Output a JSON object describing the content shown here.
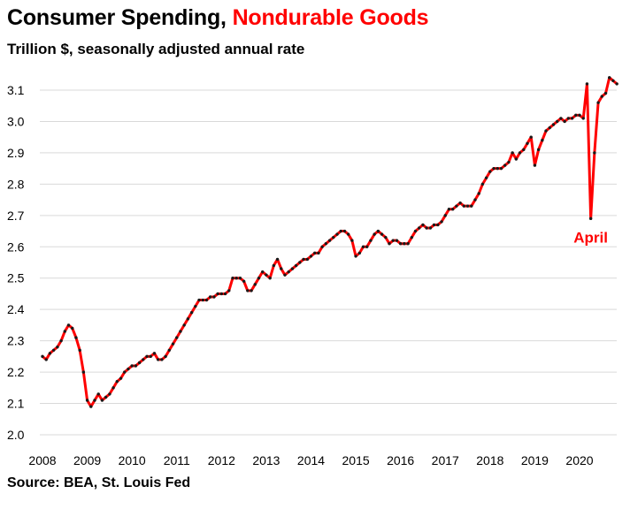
{
  "title_part1": "Consumer Spending,",
  "title_part2": "Nondurable Goods",
  "subtitle": "Trillion $, seasonally adjusted annual rate",
  "source": "Source: BEA, St. Louis Fed",
  "colors": {
    "line": "#ff0000",
    "markers": "#1a1a1a",
    "grid": "#d9d9d9",
    "annotation": "#ff0000"
  },
  "chart_data": {
    "type": "line",
    "title": "Consumer Spending, Nondurable Goods",
    "subtitle": "Trillion $, seasonally adjusted annual rate",
    "xlabel": "",
    "ylabel": "Trillion $",
    "ylim": [
      2.0,
      3.15
    ],
    "yticks": [
      2.0,
      2.1,
      2.2,
      2.3,
      2.4,
      2.5,
      2.6,
      2.7,
      2.8,
      2.9,
      3.0,
      3.1
    ],
    "ytick_labels": [
      "2.0",
      "2.1",
      "2.2",
      "2.3",
      "2.4",
      "2.5",
      "2.6",
      "2.7",
      "2.8",
      "2.9",
      "3.0",
      "3.1"
    ],
    "xlim": [
      2008.0,
      2020.9
    ],
    "xticks": [
      2008,
      2009,
      2010,
      2011,
      2012,
      2013,
      2014,
      2015,
      2016,
      2017,
      2018,
      2019,
      2020
    ],
    "xtick_labels": [
      "2008",
      "2009",
      "2010",
      "2011",
      "2012",
      "2013",
      "2014",
      "2015",
      "2016",
      "2017",
      "2018",
      "2019",
      "2020"
    ],
    "grid": true,
    "annotations": [
      {
        "text": "April",
        "x": 2020.25,
        "y": 2.69
      }
    ],
    "series": [
      {
        "name": "Nondurable Goods",
        "frequency": "monthly",
        "start": 2008.0,
        "values": [
          2.25,
          2.24,
          2.26,
          2.27,
          2.28,
          2.3,
          2.33,
          2.35,
          2.34,
          2.31,
          2.27,
          2.2,
          2.11,
          2.09,
          2.11,
          2.13,
          2.11,
          2.12,
          2.13,
          2.15,
          2.17,
          2.18,
          2.2,
          2.21,
          2.22,
          2.22,
          2.23,
          2.24,
          2.25,
          2.25,
          2.26,
          2.24,
          2.24,
          2.25,
          2.27,
          2.29,
          2.31,
          2.33,
          2.35,
          2.37,
          2.39,
          2.41,
          2.43,
          2.43,
          2.43,
          2.44,
          2.44,
          2.45,
          2.45,
          2.45,
          2.46,
          2.5,
          2.5,
          2.5,
          2.49,
          2.46,
          2.46,
          2.48,
          2.5,
          2.52,
          2.51,
          2.5,
          2.54,
          2.56,
          2.53,
          2.51,
          2.52,
          2.53,
          2.54,
          2.55,
          2.56,
          2.56,
          2.57,
          2.58,
          2.58,
          2.6,
          2.61,
          2.62,
          2.63,
          2.64,
          2.65,
          2.65,
          2.64,
          2.62,
          2.57,
          2.58,
          2.6,
          2.6,
          2.62,
          2.64,
          2.65,
          2.64,
          2.63,
          2.61,
          2.62,
          2.62,
          2.61,
          2.61,
          2.61,
          2.63,
          2.65,
          2.66,
          2.67,
          2.66,
          2.66,
          2.67,
          2.67,
          2.68,
          2.7,
          2.72,
          2.72,
          2.73,
          2.74,
          2.73,
          2.73,
          2.73,
          2.75,
          2.77,
          2.8,
          2.82,
          2.84,
          2.85,
          2.85,
          2.85,
          2.86,
          2.87,
          2.9,
          2.88,
          2.9,
          2.91,
          2.93,
          2.95,
          2.86,
          2.91,
          2.94,
          2.97,
          2.98,
          2.99,
          3.0,
          3.01,
          3.0,
          3.01,
          3.01,
          3.02,
          3.02,
          3.01,
          3.12,
          2.69,
          2.9,
          3.06,
          3.08,
          3.09,
          3.14,
          3.13,
          3.12
        ]
      }
    ]
  }
}
